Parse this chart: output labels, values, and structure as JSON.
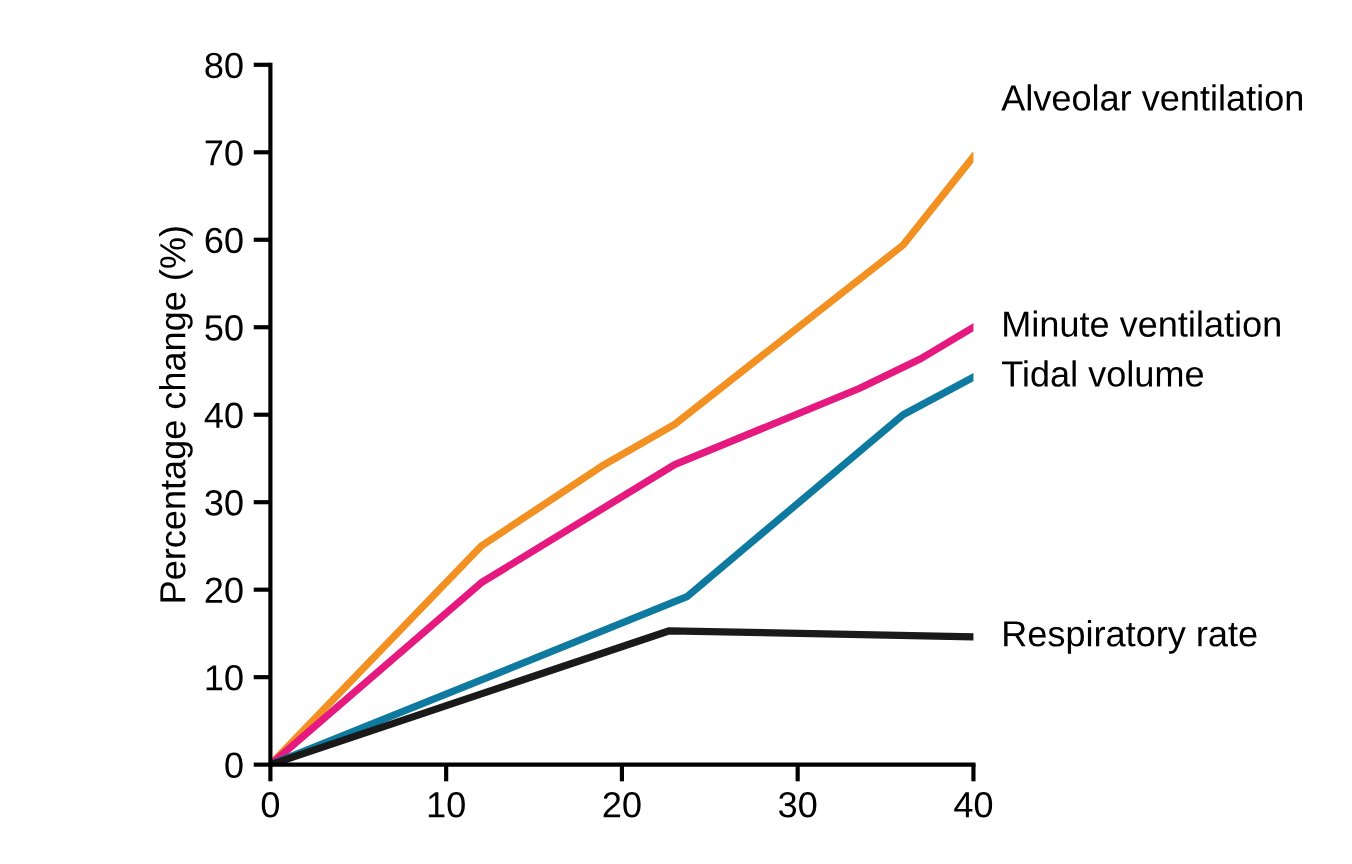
{
  "chart_data": {
    "type": "line",
    "ylabel": "Percentage change (%)",
    "xlim": [
      0,
      40
    ],
    "ylim": [
      0,
      80
    ],
    "xticks": [
      0,
      10,
      20,
      30,
      40
    ],
    "yticks": [
      0,
      10,
      20,
      30,
      40,
      50,
      60,
      70,
      80
    ],
    "grid": false,
    "legend": false,
    "marker": "none",
    "line_style": "solid",
    "series": [
      {
        "name": "Alveolar ventilation",
        "color": "#f39022",
        "x": [
          0,
          12,
          19,
          23,
          36,
          40
        ],
        "values": [
          0,
          25,
          34.3,
          38.9,
          59.4,
          69.5
        ]
      },
      {
        "name": "Minute ventilation",
        "color": "#e5197f",
        "x": [
          0,
          12,
          23,
          33.5,
          37,
          40
        ],
        "values": [
          0,
          20.8,
          34.3,
          43,
          46.4,
          50
        ]
      },
      {
        "name": "Tidal volume",
        "color": "#0f7aa0",
        "x": [
          0,
          13,
          23.7,
          36,
          40
        ],
        "values": [
          0,
          10.5,
          19.2,
          40,
          44.3
        ]
      },
      {
        "name": "Respiratory rate",
        "color": "#1a1a1a",
        "x": [
          0,
          22.7,
          40
        ],
        "values": [
          0,
          15.3,
          14.6
        ]
      }
    ]
  }
}
